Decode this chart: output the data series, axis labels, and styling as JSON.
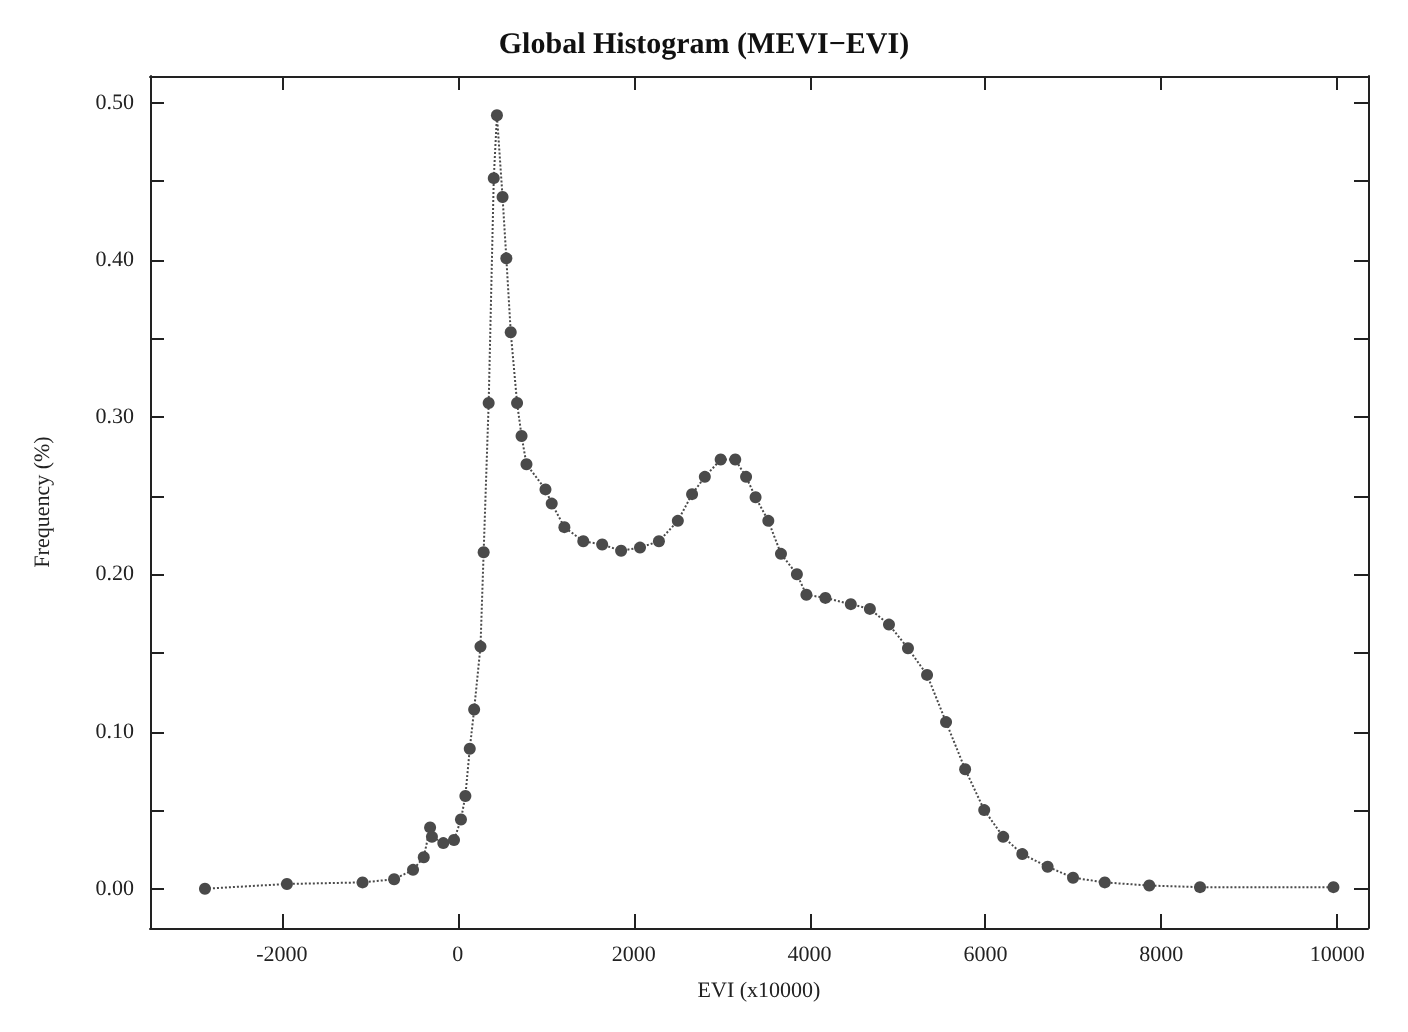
{
  "chart_data": {
    "type": "line",
    "title": "Global Histogram (MEVI−EVI)",
    "xlabel": "EVI (x10000)",
    "ylabel": "Frequency (%)",
    "x": [
      -2875,
      -1943,
      -1083,
      -724,
      -509,
      -387,
      -315,
      -294,
      -165,
      -43,
      36,
      86,
      136,
      186,
      258,
      294,
      351,
      409,
      445,
      509,
      552,
      602,
      674,
      725,
      781,
      997,
      1068,
      1212,
      1427,
      1642,
      1857,
      2072,
      2287,
      2502,
      2664,
      2809,
      2989,
      3155,
      3278,
      3386,
      3531,
      3675,
      3856,
      3964,
      4180,
      4469,
      4686,
      4903,
      5119,
      5336,
      5552,
      5769,
      5986,
      6202,
      6419,
      6707,
      6996,
      7357,
      7863,
      8440,
      9957
    ],
    "values": [
      0.0,
      0.003,
      0.004,
      0.006,
      0.012,
      0.02,
      0.039,
      0.033,
      0.029,
      0.031,
      0.044,
      0.059,
      0.089,
      0.114,
      0.154,
      0.214,
      0.309,
      0.452,
      0.492,
      0.44,
      0.401,
      0.354,
      0.309,
      0.288,
      0.27,
      0.254,
      0.245,
      0.23,
      0.221,
      0.219,
      0.215,
      0.217,
      0.221,
      0.234,
      0.251,
      0.262,
      0.273,
      0.273,
      0.262,
      0.249,
      0.234,
      0.213,
      0.2,
      0.187,
      0.185,
      0.181,
      0.178,
      0.168,
      0.153,
      0.136,
      0.106,
      0.076,
      0.05,
      0.033,
      0.022,
      0.014,
      0.007,
      0.004,
      0.002,
      0.001,
      0.001
    ],
    "color": "#4a4a4a",
    "marker": "circle",
    "line_style": "dotted",
    "xlim": [
      -3500,
      10350
    ],
    "xticks": [
      -2000,
      0,
      2000,
      4000,
      6000,
      8000,
      10000
    ],
    "ylim": [
      -0.025,
      0.517
    ],
    "yticks": [
      {
        "value": 0,
        "label": "0.00"
      },
      {
        "value": 0.05,
        "label": null
      },
      {
        "value": 0.1,
        "label": "0.10"
      },
      {
        "value": 0.15,
        "label": null
      },
      {
        "value": 0.2,
        "label": "0.20"
      },
      {
        "value": 0.25,
        "label": null
      },
      {
        "value": 0.3,
        "label": "0.30"
      },
      {
        "value": 0.35,
        "label": null
      },
      {
        "value": 0.4,
        "label": "0.40"
      },
      {
        "value": 0.45,
        "label": null
      },
      {
        "value": 0.5,
        "label": "0.50"
      }
    ]
  }
}
